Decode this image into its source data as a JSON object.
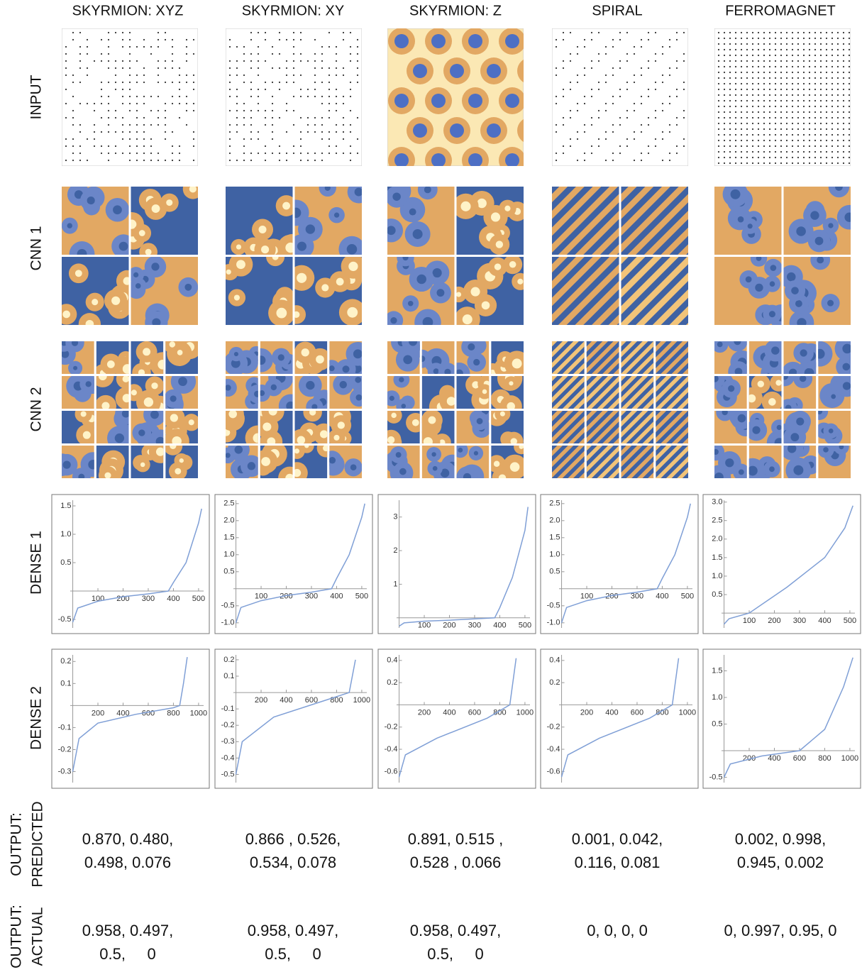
{
  "columns": [
    "SKYRMION: XYZ",
    "SKYRMION: XY",
    "SKYRMION: Z",
    "SPIRAL",
    "FERROMAGNET"
  ],
  "rows": {
    "input": "INPUT",
    "cnn1": "CNN 1",
    "cnn2": "CNN 2",
    "dense1": "DENSE 1",
    "dense2": "DENSE 2",
    "predicted": [
      "OUTPUT:",
      "PREDICTED"
    ],
    "actual": [
      "OUTPUT:",
      "ACTUAL"
    ]
  },
  "plots": {
    "dense1": [
      {
        "xlim": [
          -10,
          520
        ],
        "ylim": [
          -0.65,
          1.6
        ],
        "xticks": [
          100,
          200,
          300,
          400,
          500
        ],
        "yticks": [
          {
            "value": 1.5,
            "label": "1.5"
          },
          {
            "value": 1,
            "label": "1.0"
          },
          0.5,
          -0.5
        ],
        "x": [
          0,
          20,
          100,
          200,
          300,
          380,
          400,
          450,
          500,
          512
        ],
        "y": [
          -0.55,
          -0.3,
          -0.18,
          -0.1,
          -0.05,
          0,
          0.15,
          0.5,
          1.2,
          1.45
        ]
      },
      {
        "xlim": [
          -10,
          520
        ],
        "ylim": [
          -1.15,
          2.6
        ],
        "xticks": [
          100,
          200,
          300,
          400,
          500
        ],
        "yticks": [
          2.5,
          {
            "value": 2,
            "label": "2.0"
          },
          1.5,
          {
            "value": 1,
            "label": "1.0"
          },
          0.5,
          -0.5,
          {
            "value": -1,
            "label": "-1.0"
          }
        ],
        "x": [
          0,
          20,
          100,
          200,
          300,
          380,
          400,
          450,
          500,
          512
        ],
        "y": [
          -1.0,
          -0.55,
          -0.35,
          -0.2,
          -0.1,
          0,
          0.3,
          1.0,
          2.1,
          2.5
        ]
      },
      {
        "xlim": [
          -10,
          520
        ],
        "ylim": [
          -0.3,
          3.5
        ],
        "xticks": [
          100,
          200,
          300,
          400,
          500
        ],
        "yticks": [
          3,
          2,
          1
        ],
        "x": [
          0,
          20,
          100,
          200,
          300,
          380,
          400,
          450,
          500,
          512
        ],
        "y": [
          -0.25,
          -0.15,
          -0.1,
          -0.07,
          -0.03,
          0,
          0.3,
          1.2,
          2.6,
          3.3
        ]
      },
      {
        "xlim": [
          -10,
          520
        ],
        "ylim": [
          -1.15,
          2.6
        ],
        "xticks": [
          100,
          200,
          300,
          400,
          500
        ],
        "yticks": [
          2.5,
          {
            "value": 2,
            "label": "2.0"
          },
          1.5,
          {
            "value": 1,
            "label": "1.0"
          },
          0.5,
          -0.5,
          {
            "value": -1,
            "label": "-1.0"
          }
        ],
        "x": [
          0,
          20,
          100,
          200,
          300,
          380,
          400,
          450,
          500,
          512
        ],
        "y": [
          -1.0,
          -0.55,
          -0.35,
          -0.2,
          -0.1,
          0,
          0.3,
          1.0,
          2.1,
          2.5
        ]
      },
      {
        "xlim": [
          -10,
          520
        ],
        "ylim": [
          -0.4,
          3.05
        ],
        "xticks": [
          100,
          200,
          300,
          400,
          500
        ],
        "yticks": [
          {
            "value": 3,
            "label": "3.0"
          },
          2.5,
          {
            "value": 2,
            "label": "2.0"
          },
          1.5,
          {
            "value": 1,
            "label": "1.0"
          },
          0.5
        ],
        "x": [
          0,
          20,
          100,
          250,
          400,
          480,
          512
        ],
        "y": [
          -0.3,
          -0.15,
          0,
          0.7,
          1.5,
          2.3,
          2.9
        ]
      }
    ],
    "dense2": [
      {
        "xlim": [
          -20,
          1040
        ],
        "ylim": [
          -0.35,
          0.23
        ],
        "xticks": [
          200,
          400,
          600,
          800,
          1000
        ],
        "yticks": [
          0.2,
          0.1,
          -0.1,
          -0.2,
          -0.3
        ],
        "x": [
          0,
          50,
          200,
          500,
          800,
          850,
          880,
          910
        ],
        "y": [
          -0.3,
          -0.15,
          -0.08,
          -0.04,
          -0.01,
          0,
          0.1,
          0.22
        ]
      },
      {
        "xlim": [
          -20,
          1040
        ],
        "ylim": [
          -0.55,
          0.23
        ],
        "xticks": [
          200,
          400,
          600,
          800,
          1000
        ],
        "yticks": [
          0.2,
          0.1,
          -0.1,
          -0.2,
          -0.3,
          -0.4,
          -0.5
        ],
        "x": [
          0,
          50,
          300,
          700,
          900,
          950
        ],
        "y": [
          -0.5,
          -0.3,
          -0.15,
          -0.05,
          0,
          0.2
        ]
      },
      {
        "xlim": [
          -20,
          1040
        ],
        "ylim": [
          -0.7,
          0.45
        ],
        "xticks": [
          200,
          400,
          600,
          800,
          1000
        ],
        "yticks": [
          0.4,
          0.2,
          -0.2,
          -0.4,
          -0.6
        ],
        "x": [
          0,
          50,
          300,
          700,
          880,
          930
        ],
        "y": [
          -0.65,
          -0.45,
          -0.3,
          -0.12,
          0,
          0.42
        ]
      },
      {
        "xlim": [
          -20,
          1040
        ],
        "ylim": [
          -0.7,
          0.45
        ],
        "xticks": [
          200,
          400,
          600,
          800,
          1000
        ],
        "yticks": [
          0.4,
          0.2,
          -0.2,
          -0.4,
          -0.6
        ],
        "x": [
          0,
          50,
          300,
          700,
          880,
          930
        ],
        "y": [
          -0.65,
          -0.45,
          -0.3,
          -0.12,
          0,
          0.42
        ]
      },
      {
        "xlim": [
          -20,
          1040
        ],
        "ylim": [
          -0.6,
          1.8
        ],
        "xticks": [
          200,
          400,
          600,
          800,
          1000
        ],
        "yticks": [
          1.5,
          {
            "value": 1,
            "label": "1.0"
          },
          0.5,
          -0.5
        ],
        "x": [
          0,
          50,
          300,
          600,
          800,
          950,
          1024
        ],
        "y": [
          -0.5,
          -0.25,
          -0.1,
          0,
          0.4,
          1.2,
          1.75
        ]
      }
    ]
  },
  "outputs": {
    "predicted": [
      [
        "0.870, 0.480,",
        "0.498, 0.076"
      ],
      [
        "0.866 , 0.526,",
        "0.534, 0.078"
      ],
      [
        "0.891, 0.515 ,",
        "0.528 , 0.066"
      ],
      [
        "0.001, 0.042,",
        "0.116, 0.081"
      ],
      [
        "0.002, 0.998,",
        "0.945, 0.002"
      ]
    ],
    "actual": [
      [
        "0.958, 0.497,",
        "0.5,     0"
      ],
      [
        "0.958, 0.497,",
        "0.5,     0"
      ],
      [
        "0.958, 0.497,",
        "0.5,     0"
      ],
      [
        "0, 0, 0, 0"
      ],
      [
        "0, 0.997, 0.95, 0"
      ]
    ]
  }
}
